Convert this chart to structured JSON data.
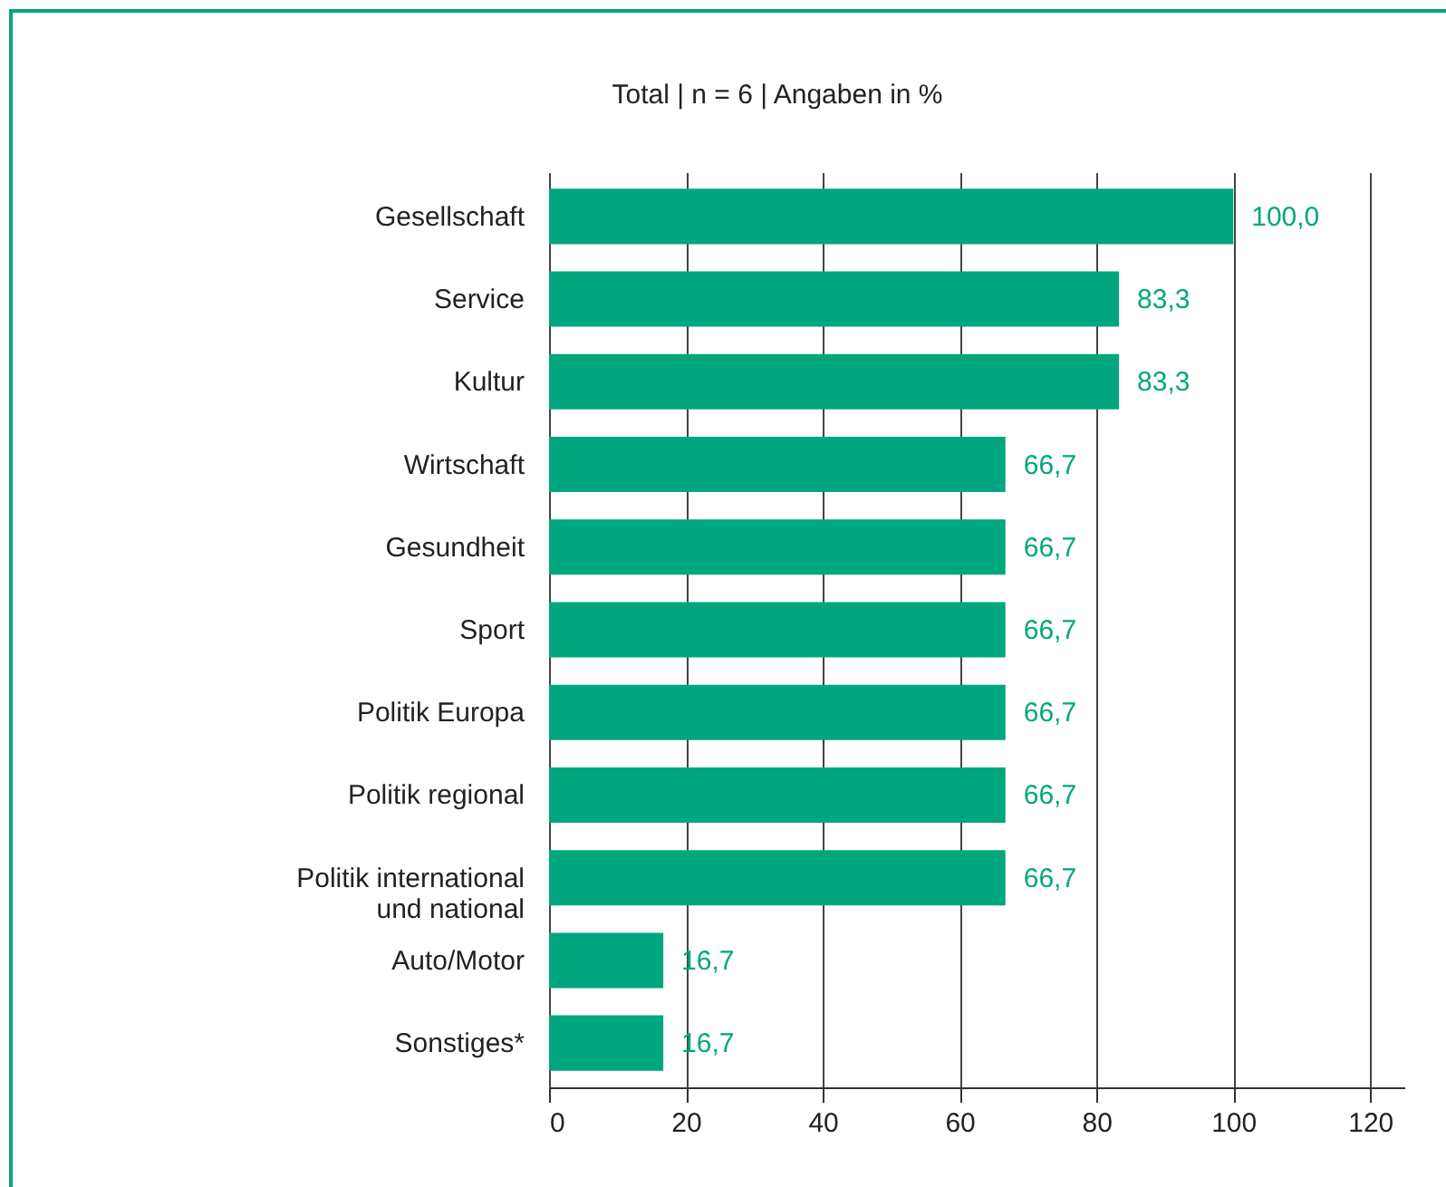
{
  "chart_data": {
    "type": "bar",
    "orientation": "horizontal",
    "title": "Total | n = 6 | Angaben in %",
    "categories": [
      "Gesellschaft",
      "Service",
      "Kultur",
      "Wirtschaft",
      "Gesundheit",
      "Sport",
      "Politik Europa",
      "Politik regional",
      "Politik international\nund national",
      "Auto/Motor",
      "Sonstiges*"
    ],
    "values": [
      100.0,
      83.3,
      83.3,
      66.7,
      66.7,
      66.7,
      66.7,
      66.7,
      66.7,
      16.7,
      16.7
    ],
    "color": "#00a67e",
    "xlim": [
      0,
      125
    ],
    "xticks": [
      0,
      20,
      40,
      60,
      80,
      100,
      120
    ],
    "grid": "x",
    "value_labels": [
      "100,0",
      "83,3",
      "83,3",
      "66,7",
      "66,7",
      "66,7",
      "66,7",
      "66,7",
      "66,7",
      "16,7",
      "16,7"
    ]
  }
}
